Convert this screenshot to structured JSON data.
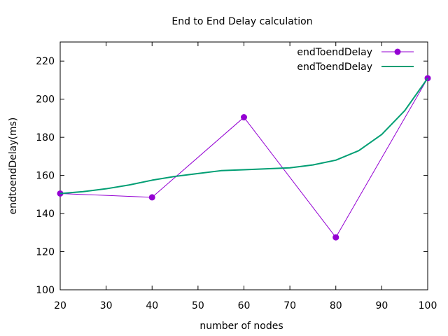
{
  "chart_data": {
    "type": "line",
    "title": "End to End Delay calculation",
    "xlabel": "number of nodes",
    "ylabel": "endtoendDelay(ms)",
    "xlim": [
      20,
      100
    ],
    "ylim": [
      100,
      230
    ],
    "xticks": [
      20,
      30,
      40,
      50,
      60,
      70,
      80,
      90,
      100
    ],
    "yticks": [
      100,
      120,
      140,
      160,
      180,
      200,
      220
    ],
    "grid": false,
    "legend_position": "top-right",
    "series": [
      {
        "name": "endToendDelay",
        "style": "lines+points",
        "color": "#9400d3",
        "x": [
          20,
          40,
          60,
          80,
          100
        ],
        "y": [
          150.5,
          148.5,
          190.5,
          127.5,
          211
        ]
      },
      {
        "name": "endToendDelay",
        "style": "smooth-line",
        "color": "#009e73",
        "x": [
          20,
          25,
          30,
          35,
          40,
          45,
          50,
          55,
          60,
          65,
          70,
          75,
          80,
          85,
          90,
          95,
          100
        ],
        "y": [
          150.5,
          151.5,
          153,
          155,
          157.5,
          159.5,
          161,
          162.5,
          163,
          163.5,
          164,
          165.5,
          168,
          173,
          181.5,
          194,
          211
        ]
      }
    ]
  }
}
